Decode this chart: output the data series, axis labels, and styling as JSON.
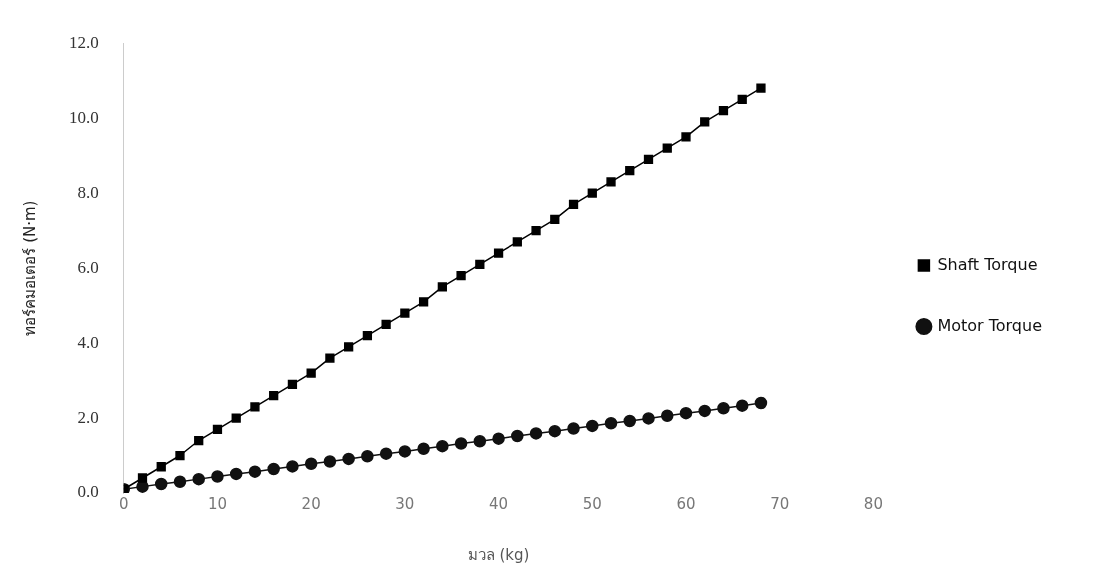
{
  "chart_data": {
    "type": "line",
    "xlabel": "มวล (kg)",
    "ylabel": "ทอร์คมอเตอร์ (N·m)",
    "x": [
      0,
      2,
      4,
      6,
      8,
      10,
      12,
      14,
      16,
      18,
      20,
      22,
      24,
      26,
      28,
      30,
      32,
      34,
      36,
      38,
      40,
      42,
      44,
      46,
      48,
      50,
      52,
      54,
      56,
      58,
      60,
      62,
      64,
      66,
      68
    ],
    "series": [
      {
        "name": "Shaft Torque",
        "color": "#000000",
        "marker": "square",
        "values": [
          0.1,
          0.4,
          0.7,
          1.0,
          1.4,
          1.7,
          2.0,
          2.3,
          2.6,
          2.9,
          3.2,
          3.6,
          3.9,
          4.2,
          4.5,
          4.8,
          5.1,
          5.5,
          5.8,
          6.1,
          6.4,
          6.7,
          7.0,
          7.3,
          7.7,
          8.0,
          8.3,
          8.6,
          8.9,
          9.2,
          9.5,
          9.9,
          10.2,
          10.5,
          10.8
        ]
      },
      {
        "name": "Motor Torque",
        "color": "#111111",
        "marker": "circle",
        "values": [
          0.1,
          0.17,
          0.24,
          0.3,
          0.37,
          0.44,
          0.51,
          0.57,
          0.64,
          0.71,
          0.78,
          0.84,
          0.91,
          0.98,
          1.05,
          1.11,
          1.18,
          1.25,
          1.32,
          1.38,
          1.45,
          1.52,
          1.59,
          1.65,
          1.72,
          1.79,
          1.86,
          1.92,
          1.99,
          2.06,
          2.13,
          2.19,
          2.26,
          2.33,
          2.4
        ]
      }
    ],
    "xlim": [
      0,
      80
    ],
    "xticks": [
      0,
      10,
      20,
      30,
      40,
      50,
      60,
      70,
      80
    ],
    "ylim": [
      0,
      12
    ],
    "yticks": [
      {
        "value": 0,
        "label": "0.0"
      },
      {
        "value": 2,
        "label": "2.0"
      },
      {
        "value": 4,
        "label": "4.0"
      },
      {
        "value": 6,
        "label": "6.0"
      },
      {
        "value": 8,
        "label": "8.0"
      },
      {
        "value": 10,
        "label": "10.0"
      },
      {
        "value": 12,
        "label": "12.0"
      }
    ],
    "grid": false,
    "legend": "right"
  }
}
